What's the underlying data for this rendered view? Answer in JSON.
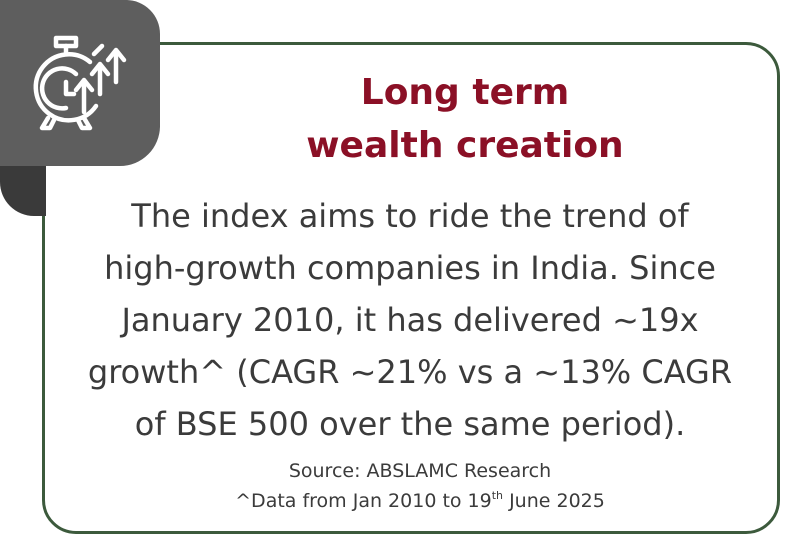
{
  "icon": {
    "name": "stopwatch-growth-arrows-icon"
  },
  "title": {
    "line1": "Long term",
    "line2": "wealth creation"
  },
  "body": {
    "line1": "The index aims to ride the trend of",
    "line2": "high-growth companies in India. Since",
    "line3": "January 2010, it has delivered ~19x",
    "line4": "growth^ (CAGR ~21% vs a ~13% CAGR",
    "line5": "of BSE 500 over the same period)."
  },
  "footnote": {
    "source": "Source: ABSLAMC Research",
    "data_prefix": "^Data from Jan 2010 to 19",
    "data_sup": "th",
    "data_suffix": " June 2025"
  },
  "colors": {
    "title": "#8b1026",
    "border": "#3c5a3c",
    "icon_tab": "#5e5e5e",
    "icon_tab_shadow": "#3a3a3a",
    "text": "#3b3b3b"
  }
}
